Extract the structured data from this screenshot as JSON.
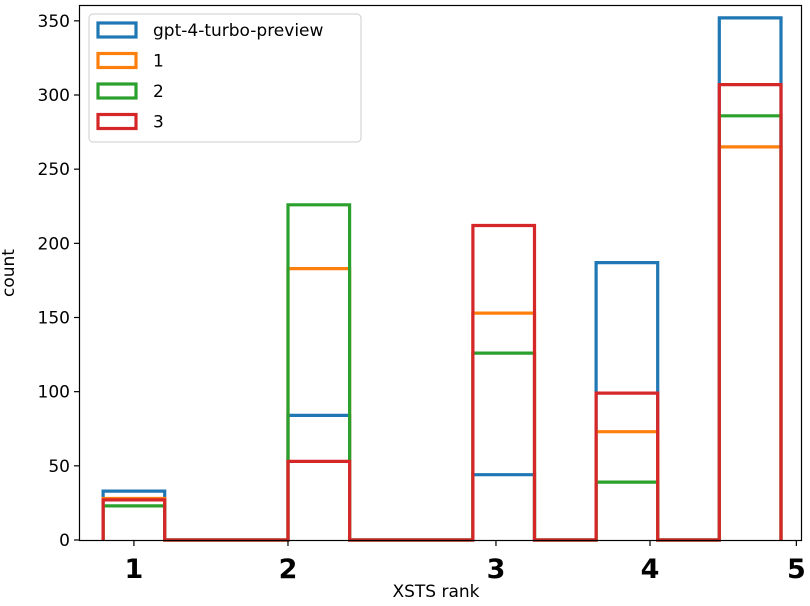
{
  "chart_data": {
    "type": "bar",
    "style": "step-histogram",
    "xlabel": "XSTS rank",
    "ylabel": "count",
    "ylim": [
      0,
      360
    ],
    "yticks": [
      0,
      50,
      100,
      150,
      200,
      250,
      300,
      350
    ],
    "bin_edges": [
      0.8,
      1.2,
      1.6,
      2.0,
      2.4,
      2.8,
      3.2,
      3.6,
      4.0,
      4.4,
      4.8,
      5.2
    ],
    "xtick_labels": [
      {
        "value": 1.0,
        "label": "1"
      },
      {
        "value": 2.0,
        "label": "2"
      },
      {
        "value": 3.35,
        "label": "3"
      },
      {
        "value": 4.35,
        "label": "4"
      },
      {
        "value": 5.3,
        "label": "5"
      }
    ],
    "legend": "upper-left",
    "series": [
      {
        "name": "gpt-4-turbo-preview",
        "color": "#1f77b4",
        "values": [
          33,
          0,
          0,
          84,
          0,
          0,
          44,
          0,
          187,
          0,
          352
        ]
      },
      {
        "name": "1",
        "color": "#ff7f0e",
        "values": [
          28,
          0,
          0,
          183,
          0,
          0,
          153,
          0,
          73,
          0,
          265
        ]
      },
      {
        "name": "2",
        "color": "#2ca02c",
        "values": [
          23,
          0,
          0,
          226,
          0,
          0,
          126,
          0,
          39,
          0,
          286
        ]
      },
      {
        "name": "3",
        "color": "#d62728",
        "values": [
          27,
          0,
          0,
          53,
          0,
          0,
          212,
          0,
          99,
          0,
          307
        ]
      }
    ]
  }
}
